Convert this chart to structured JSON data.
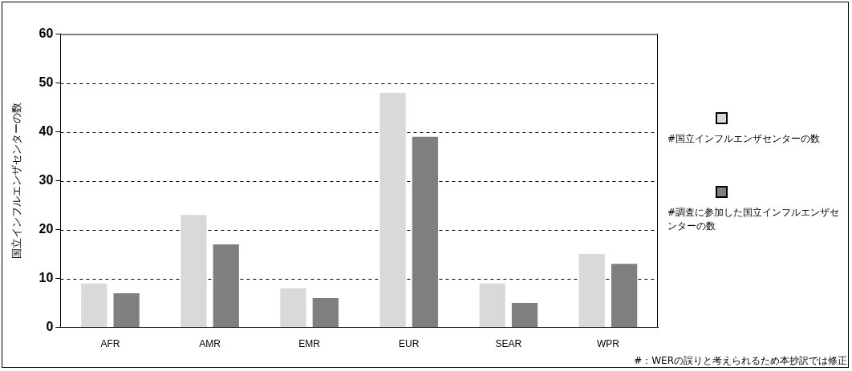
{
  "chart_data": {
    "type": "bar",
    "ylabel": "国立インフルエンザセンターの数",
    "categories": [
      "AFR",
      "AMR",
      "EMR",
      "EUR",
      "SEAR",
      "WPR"
    ],
    "series": [
      {
        "name": "#国立インフルエンザセンターの数",
        "color": "#d9d9d9",
        "values": [
          9,
          23,
          8,
          48,
          9,
          15
        ]
      },
      {
        "name": "#調査に参加した国立インフルエンザセンターの数",
        "color": "#7f7f7f",
        "values": [
          7,
          17,
          6,
          39,
          5,
          13
        ]
      }
    ],
    "ylim": [
      0,
      60
    ],
    "yticks": [
      0,
      10,
      20,
      30,
      40,
      50,
      60
    ],
    "grid": "y",
    "legend": "right",
    "annotations": [
      "#：WERの誤りと考えられるため本抄訳では修正"
    ]
  }
}
